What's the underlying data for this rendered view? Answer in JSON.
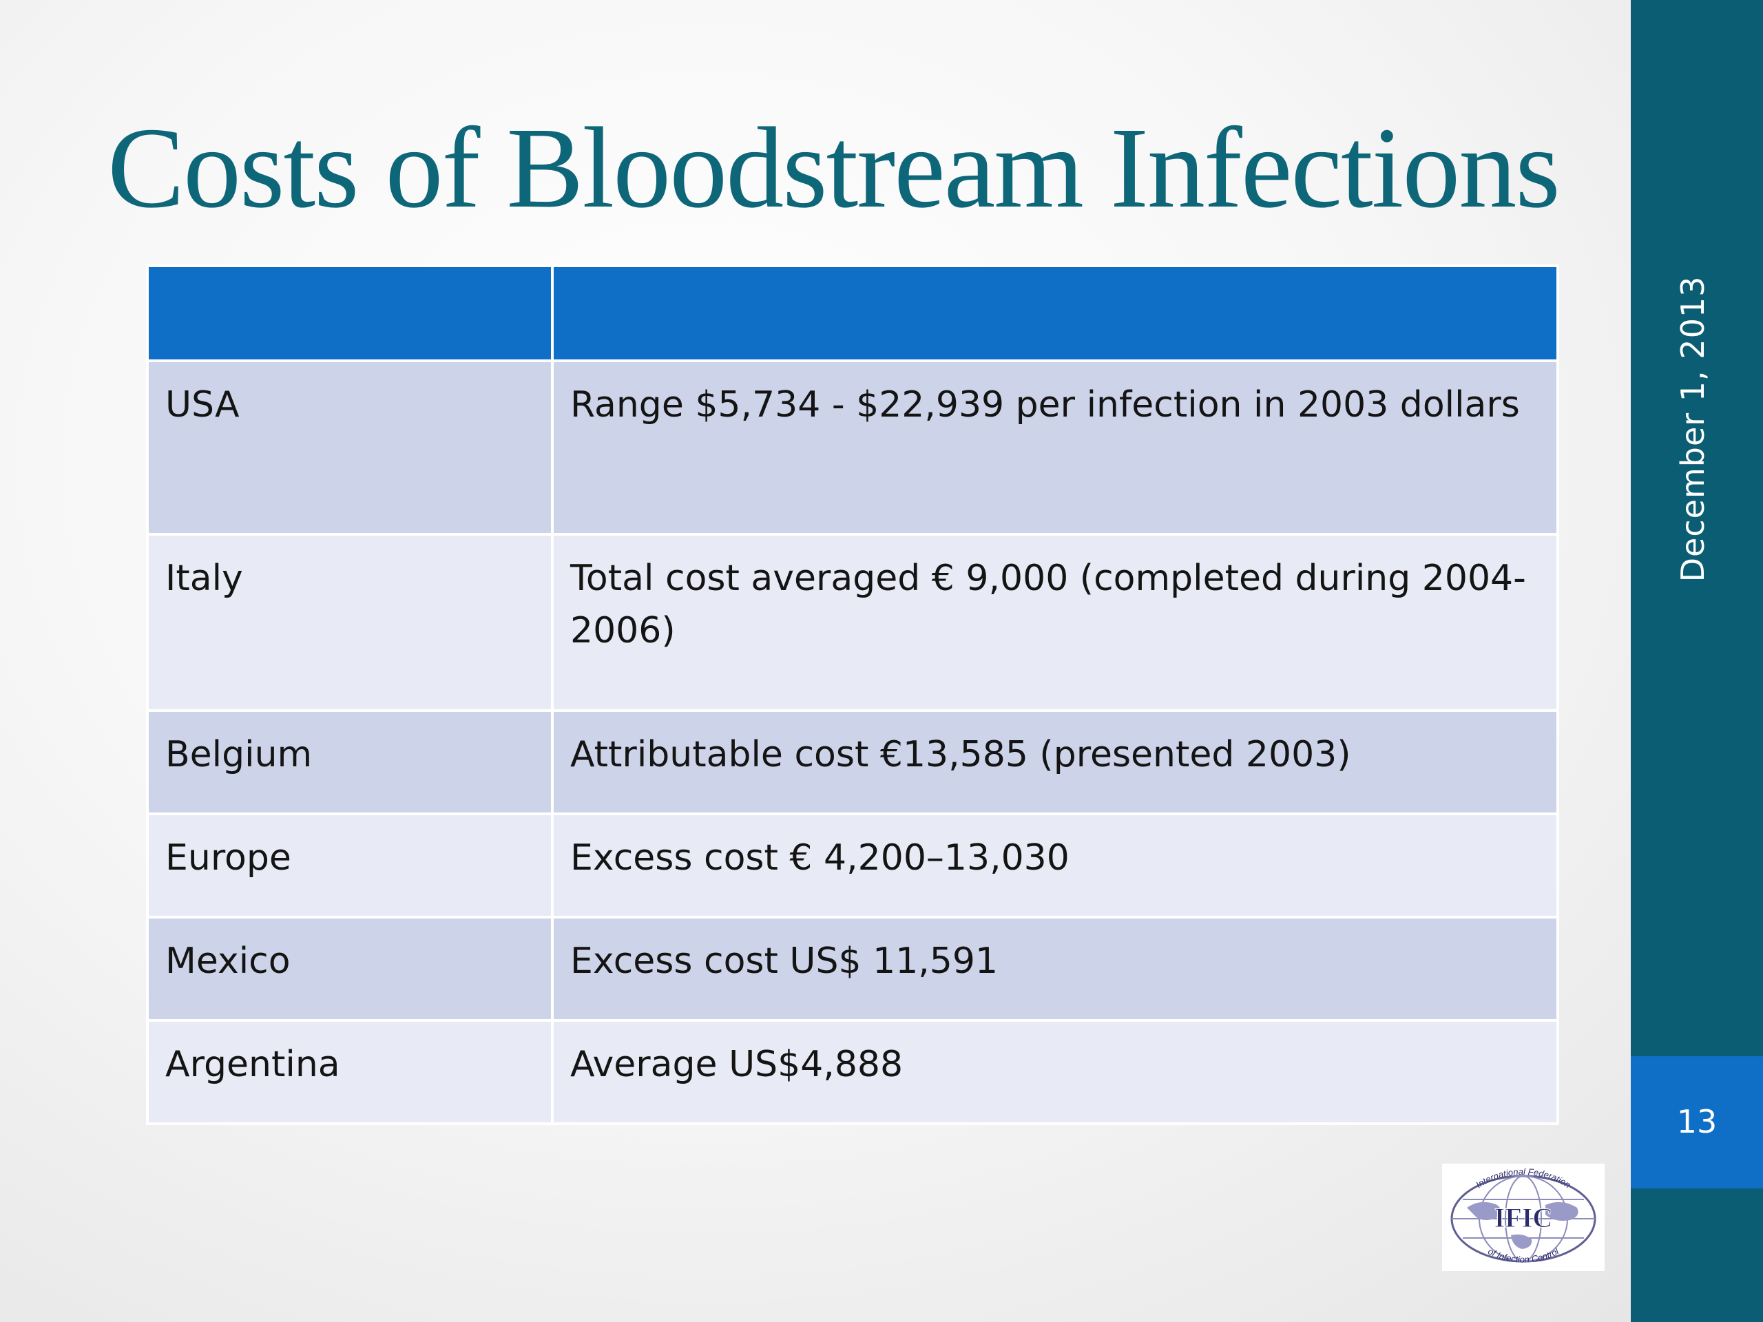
{
  "slide": {
    "title": "Costs of Bloodstream Infections",
    "date": "December 1, 2013",
    "page_number": "13"
  },
  "table": {
    "headers": [
      "",
      ""
    ],
    "rows": [
      {
        "country": "USA",
        "cost": "Range $5,734 - $22,939 per infection in 2003 dollars"
      },
      {
        "country": "Italy",
        "cost": "Total cost averaged € 9,000 (completed during 2004-2006)"
      },
      {
        "country": "Belgium",
        "cost": "Attributable cost €13,585 (presented 2003)"
      },
      {
        "country": "Europe",
        "cost": "Excess cost € 4,200–13,030"
      },
      {
        "country": "Mexico",
        "cost": "Excess cost US$ 11,591"
      },
      {
        "country": "Argentina",
        "cost": "Average US$4,888"
      }
    ]
  },
  "logo": {
    "abbreviation": "IFIC",
    "top_text": "International Federation",
    "bottom_text": "of Infection Control"
  },
  "colors": {
    "title": "#0e6679",
    "sidebar": "#0b5d73",
    "page_box": "#0f6ec6",
    "table_header": "#0f6ec6",
    "row_odd": "#cdd4e9",
    "row_even": "#e8ebf5"
  }
}
